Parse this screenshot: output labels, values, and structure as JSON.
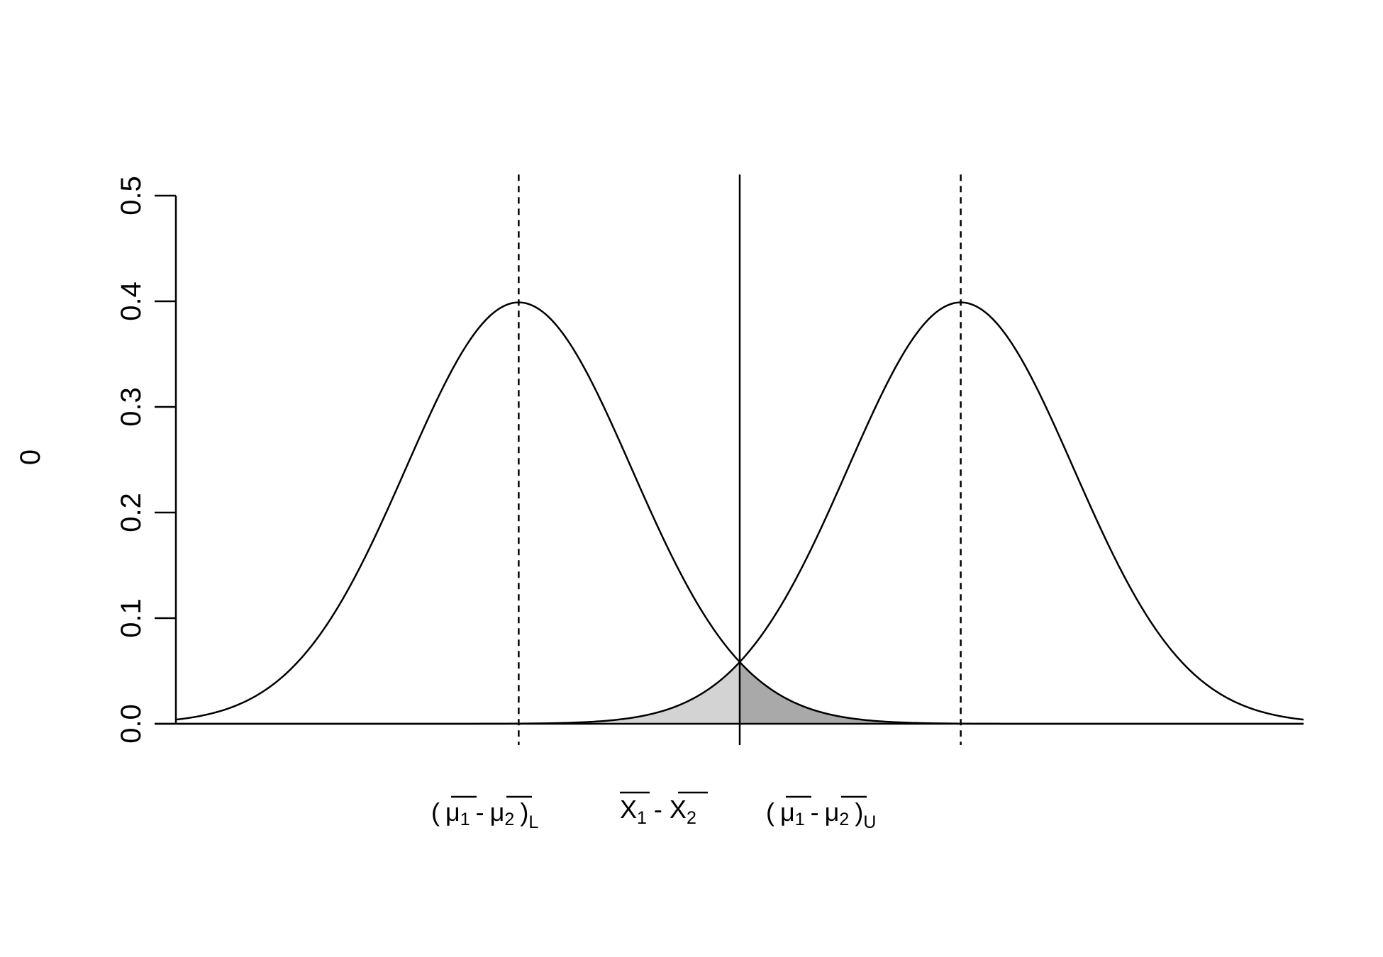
{
  "chart_data": {
    "type": "line",
    "title": "",
    "ylabel": "0",
    "xlabel": "",
    "xlim": [
      -5,
      5
    ],
    "ylim": [
      0,
      0.5
    ],
    "yticks": [
      0.0,
      0.1,
      0.2,
      0.3,
      0.4,
      0.5
    ],
    "ytick_labels": [
      "0.0",
      "0.1",
      "0.2",
      "0.3",
      "0.4",
      "0.5"
    ],
    "grid": false,
    "legend": "none",
    "series": [
      {
        "distribution": "normal",
        "mean": -1.96,
        "sd": 1,
        "color": "#000000"
      },
      {
        "distribution": "normal",
        "mean": 1.96,
        "sd": 1,
        "color": "#000000"
      }
    ],
    "vertical_lines": [
      {
        "x": -1.96,
        "style": "dashed",
        "y_top": 0.52,
        "label": {
          "main": "( μ1 - μ2 )",
          "sub": "L"
        }
      },
      {
        "x": 0,
        "style": "solid",
        "y_top": 0.52,
        "label": {
          "main": "X1 - X2"
        }
      },
      {
        "x": 1.96,
        "style": "dashed",
        "y_top": 0.52,
        "label": {
          "main": "( μ1 - μ2 )",
          "sub": "U"
        }
      }
    ],
    "shaded_tails": [
      {
        "curve": 1,
        "from": -5,
        "to": 0,
        "color": "#d3d3d3"
      },
      {
        "curve": 0,
        "from": 0,
        "to": 5,
        "color": "#a9a9a9"
      }
    ],
    "labels": {
      "lower": {
        "open": "(",
        "mu1": "μ",
        "sub1": "1",
        "minus": "-",
        "mu2": "μ",
        "sub2": "2",
        "close": ")",
        "bound": "L"
      },
      "center": {
        "x1": "X",
        "sub1": "1",
        "minus": "-",
        "x2": "X",
        "sub2": "2"
      },
      "upper": {
        "open": "(",
        "mu1": "μ",
        "sub1": "1",
        "minus": "-",
        "mu2": "μ",
        "sub2": "2",
        "close": ")",
        "bound": "U"
      }
    }
  }
}
